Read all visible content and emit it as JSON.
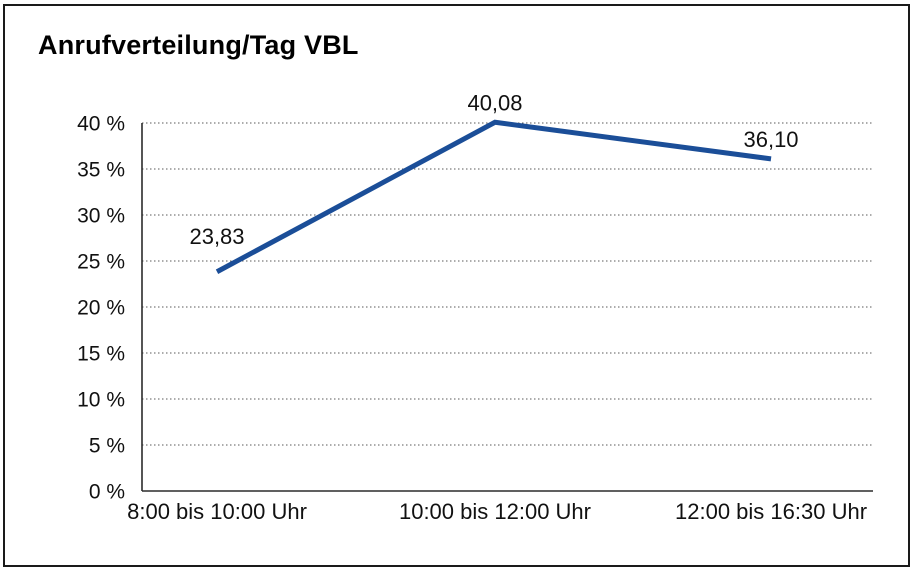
{
  "page": {
    "background_color": "#ffffff",
    "frame_border_color": "#1a1a1a"
  },
  "chart_data": {
    "type": "line",
    "title": "Anrufverteilung/Tag VBL",
    "categories": [
      "8:00 bis 10:00 Uhr",
      "10:00 bis 12:00 Uhr",
      "12:00 bis 16:30 Uhr"
    ],
    "series": [
      {
        "values": [
          23.83,
          40.08,
          36.1
        ],
        "point_labels": [
          "23,83",
          "40,08",
          "36,10"
        ],
        "color": "#1b4e98"
      }
    ],
    "xlabel": "",
    "ylabel": "",
    "ylim": [
      0,
      40
    ],
    "yticks": [
      0,
      5,
      10,
      15,
      20,
      25,
      30,
      35,
      40
    ],
    "ytick_labels": [
      "0 %",
      "5 %",
      "10 %",
      "15 %",
      "20 %",
      "25 %",
      "30 %",
      "35 %",
      "40 %"
    ],
    "grid": "horizontal-dotted",
    "gridline_color": "#5a5a5a",
    "axis_color": "#2b2b2b",
    "legend": "none",
    "markers": "none"
  }
}
